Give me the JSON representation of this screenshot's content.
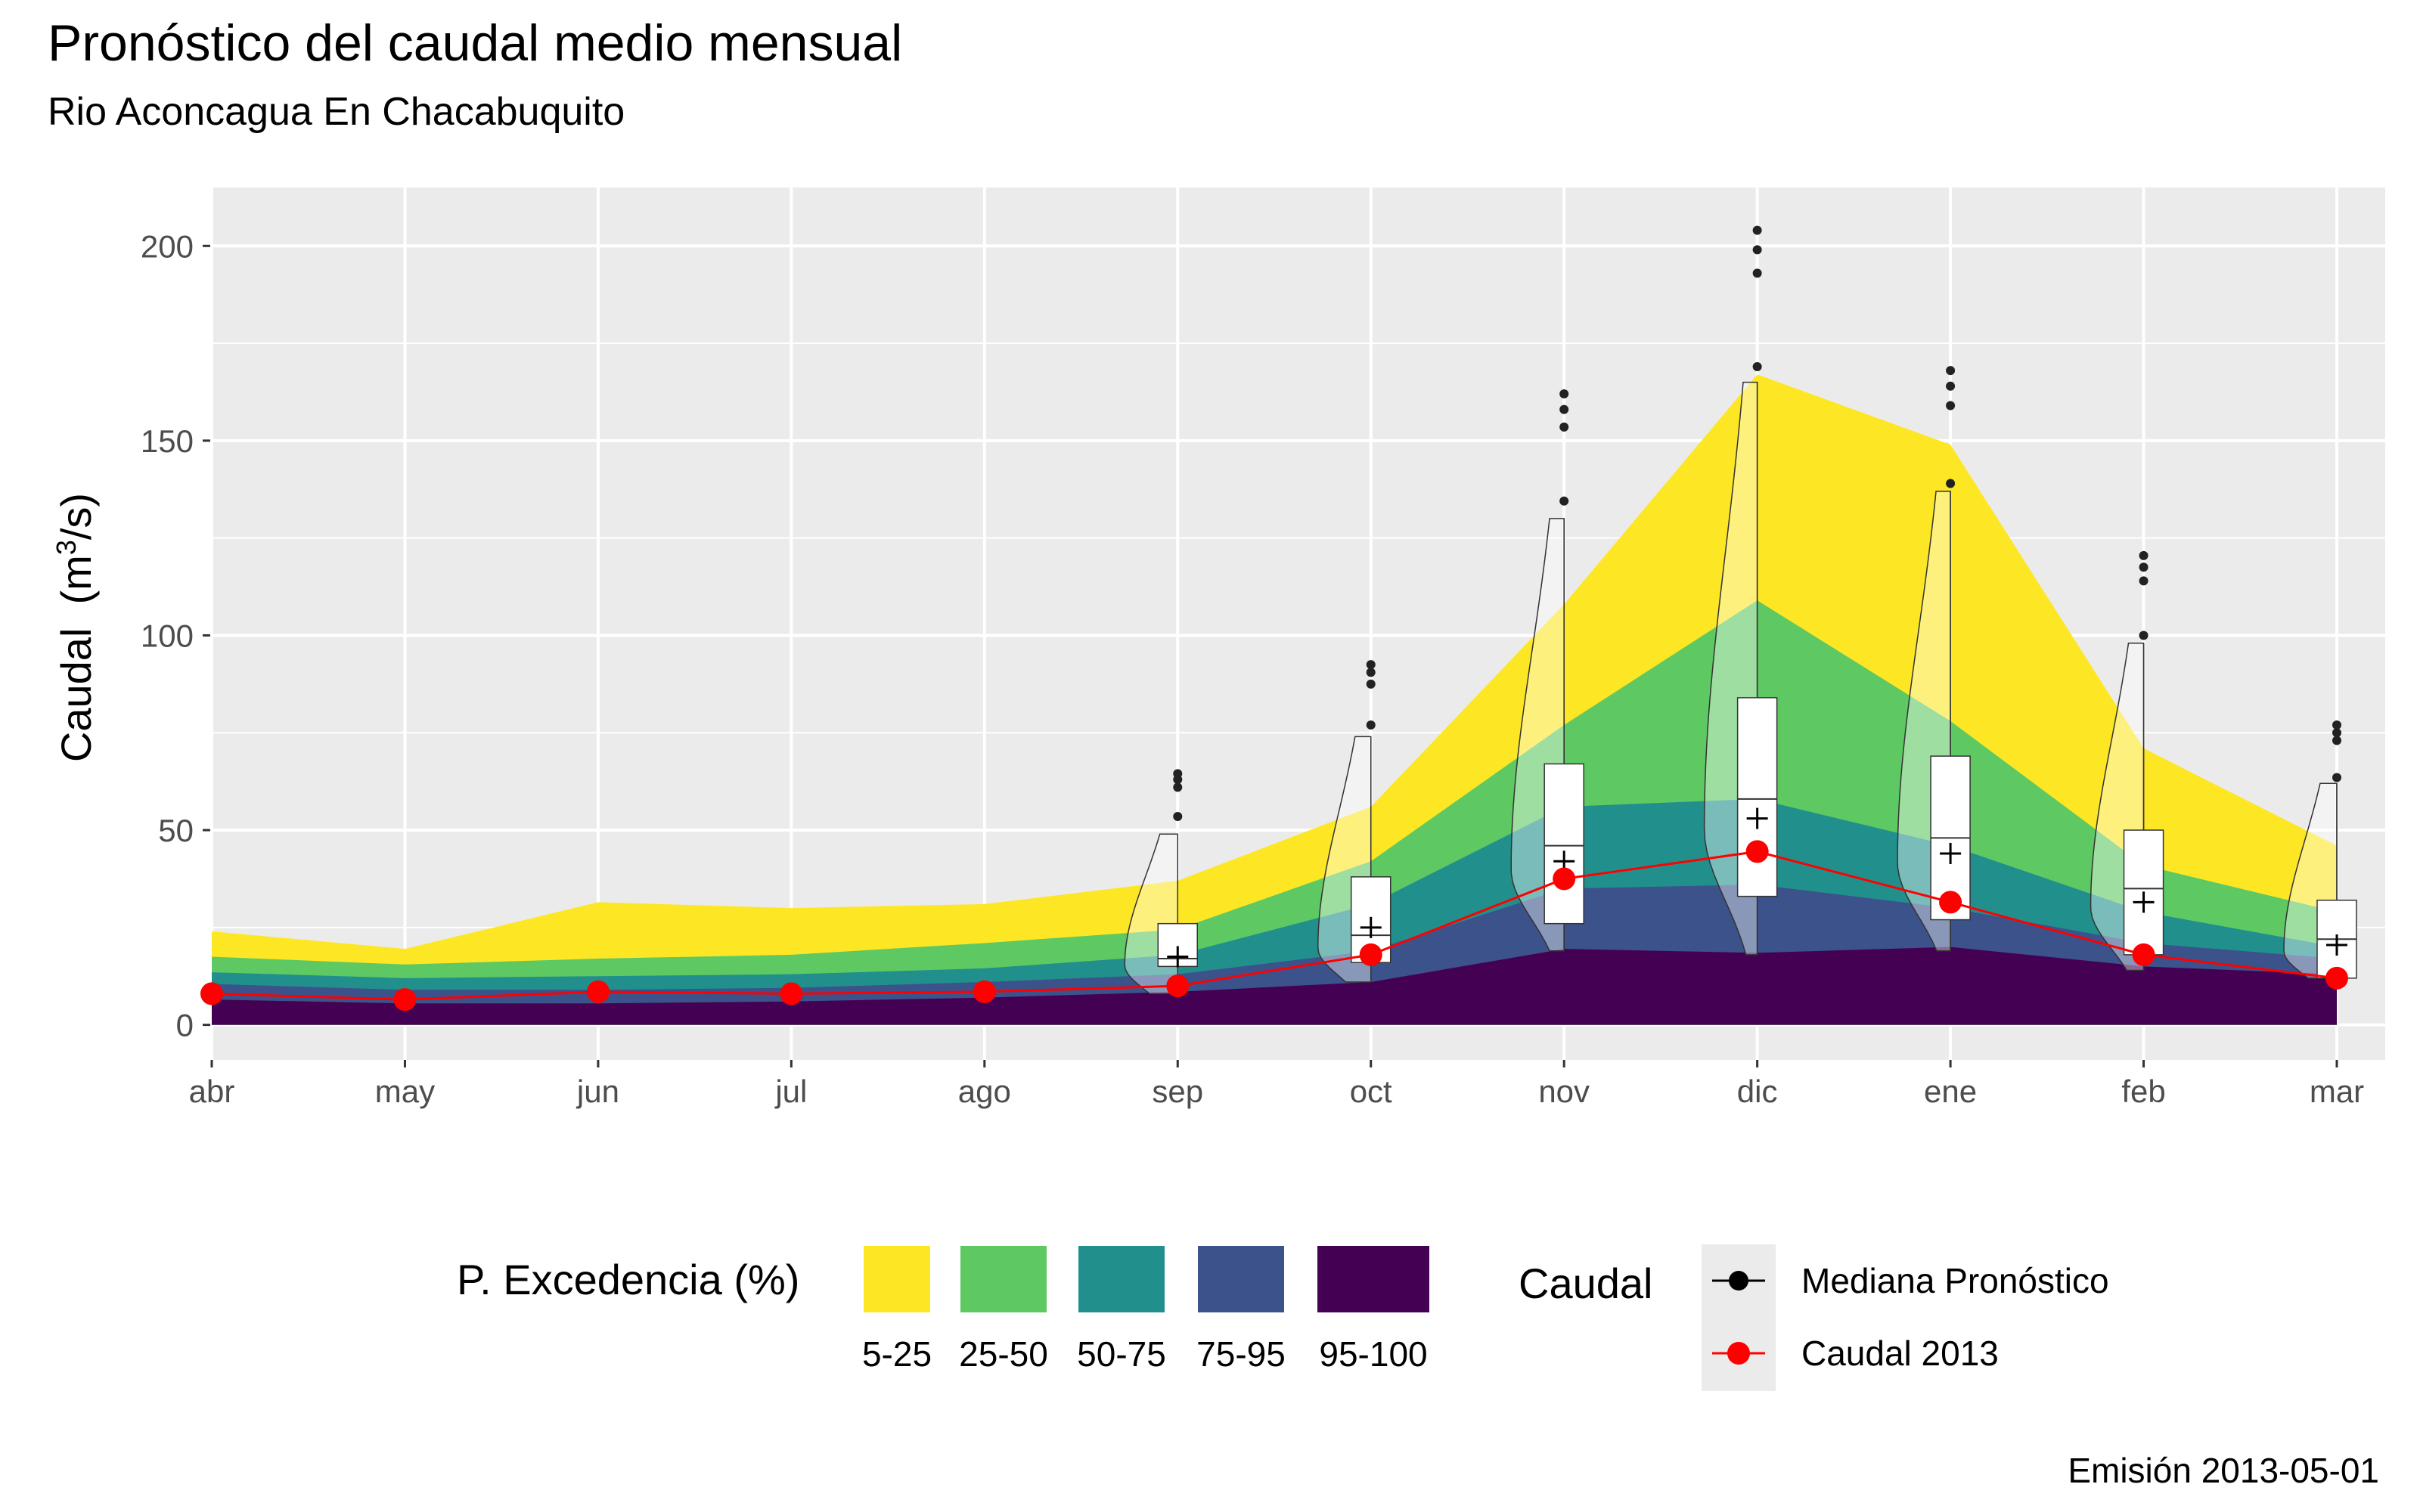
{
  "chart_data": {
    "type": "area",
    "title": "Pronóstico del caudal medio mensual",
    "subtitle": "Rio Aconcagua En Chacabuquito",
    "ylabel": "Caudal",
    "ylabel_unit_base": "m",
    "ylabel_unit_exp": "3",
    "ylabel_unit_rest": "/s",
    "ylim": [
      -9,
      215
    ],
    "yticks": [
      0,
      50,
      100,
      150,
      200
    ],
    "grid": true,
    "categories": [
      "abr",
      "may",
      "jun",
      "jul",
      "ago",
      "sep",
      "oct",
      "nov",
      "dic",
      "ene",
      "feb",
      "mar"
    ],
    "exceedance_bands": {
      "legend_title": "P. Excedencia (%)",
      "labels": [
        "5-25",
        "25-50",
        "50-75",
        "75-95",
        "95-100"
      ],
      "colors": [
        "#FDE725",
        "#5EC962",
        "#21908C",
        "#3B528B",
        "#440154"
      ],
      "upper_bounds": {
        "5-25": [
          24,
          19.5,
          31.5,
          30,
          31,
          37,
          56,
          108,
          167,
          149,
          71,
          46
        ],
        "25-50": [
          17.5,
          15.5,
          17,
          18,
          21,
          24.5,
          42,
          77,
          109,
          78,
          41,
          29
        ],
        "50-75": [
          13.5,
          12,
          12.5,
          13,
          14.5,
          18,
          31,
          56,
          58,
          46,
          29,
          20
        ],
        "75-95": [
          10.5,
          9,
          9,
          9.5,
          11,
          13,
          19,
          35,
          36,
          30,
          21,
          17
        ],
        "95-100": [
          6.5,
          5.5,
          5.5,
          6,
          7,
          8.5,
          11,
          19.5,
          18.5,
          20,
          15,
          13
        ]
      }
    },
    "series": [
      {
        "name": "Caudal 2013",
        "color": "#FF0000",
        "values": [
          8,
          6.5,
          8.5,
          8,
          8.5,
          10,
          18,
          37.5,
          44.5,
          31.5,
          18,
          12
        ]
      }
    ],
    "boxplots": {
      "categories": [
        "sep",
        "oct",
        "nov",
        "dic",
        "ene",
        "feb",
        "mar"
      ],
      "q1": [
        15,
        16,
        26,
        33,
        27,
        18,
        12
      ],
      "median": [
        17,
        23,
        46,
        58,
        48,
        35,
        22
      ],
      "q3": [
        26,
        38,
        67,
        84,
        69,
        50,
        32
      ],
      "mean": [
        17.5,
        25,
        42,
        53,
        44,
        31.5,
        20.5
      ],
      "whisker_low": [
        8,
        11,
        19,
        18,
        19,
        14,
        12
      ],
      "whisker_high": [
        49,
        74,
        130,
        165,
        137,
        98,
        62
      ],
      "outliers": [
        [
          53.5,
          61,
          63,
          64.5
        ],
        [
          77,
          87.5,
          90.5,
          92.5
        ],
        [
          134.5,
          153.5,
          158,
          162
        ],
        [
          169,
          193,
          199,
          204
        ],
        [
          139,
          159,
          164,
          168
        ],
        [
          100,
          114,
          117.5,
          120.5
        ],
        [
          63.5,
          73,
          75,
          77
        ]
      ]
    },
    "legend_caudal": {
      "title": "Caudal",
      "entries": [
        {
          "label": "Mediana Pronóstico",
          "color": "#000000"
        },
        {
          "label": "Caudal 2013",
          "color": "#FF0000"
        }
      ]
    },
    "legend_position": "bottom",
    "caption": "Emisión 2013-05-01"
  }
}
